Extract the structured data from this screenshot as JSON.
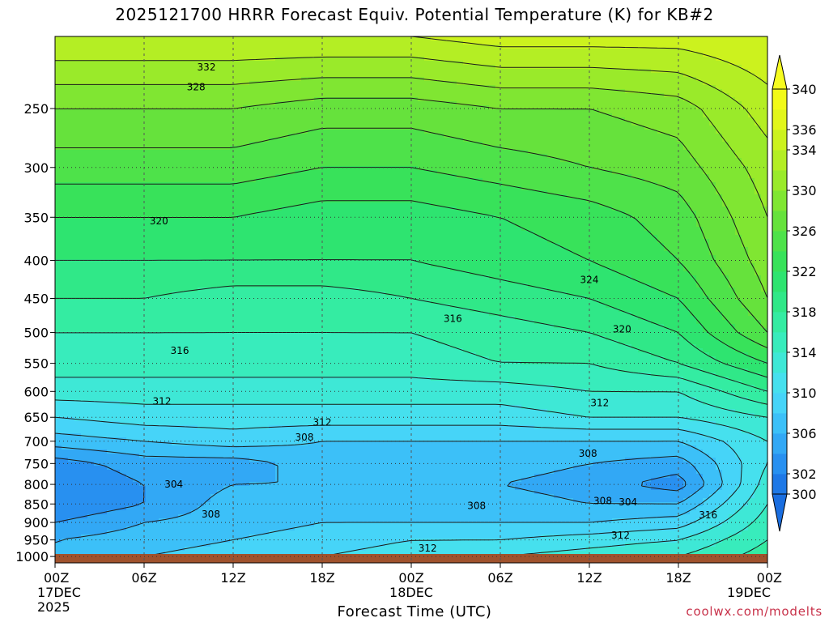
{
  "title": "2025121700 HRRR Forecast Equiv. Potential Temperature (K) for KB#2",
  "watermark": "coolwx.com/modelts",
  "chart_data": {
    "type": "heatmap",
    "title": "2025121700 HRRR Forecast Equiv. Potential Temperature (K) for KB#2",
    "xlabel": "Forecast Time (UTC)",
    "ylabel": "",
    "x_ticks": [
      {
        "hour": 0,
        "label": "00Z",
        "sub": [
          "17DEC",
          "2025"
        ]
      },
      {
        "hour": 6,
        "label": "06Z",
        "sub": []
      },
      {
        "hour": 12,
        "label": "12Z",
        "sub": []
      },
      {
        "hour": 18,
        "label": "18Z",
        "sub": []
      },
      {
        "hour": 24,
        "label": "00Z",
        "sub": [
          "18DEC"
        ]
      },
      {
        "hour": 30,
        "label": "06Z",
        "sub": []
      },
      {
        "hour": 36,
        "label": "12Z",
        "sub": []
      },
      {
        "hour": 42,
        "label": "18Z",
        "sub": []
      },
      {
        "hour": 48,
        "label": "00Z",
        "sub": [
          "19DEC"
        ]
      }
    ],
    "xlim": [
      0,
      48
    ],
    "y_ticks": [
      250,
      300,
      350,
      400,
      450,
      500,
      550,
      600,
      650,
      700,
      750,
      800,
      850,
      900,
      950,
      1000
    ],
    "ylim": [
      200,
      1020
    ],
    "y_scale": "log-pressure",
    "grid": true,
    "colorbar": {
      "levels": [
        300,
        302,
        304,
        306,
        308,
        310,
        312,
        314,
        316,
        318,
        320,
        322,
        324,
        326,
        328,
        330,
        332,
        334,
        336,
        338,
        340
      ],
      "labels": [
        300,
        302,
        306,
        310,
        314,
        318,
        322,
        326,
        330,
        334,
        336,
        340
      ],
      "colors": [
        "#1e78e6",
        "#2890f0",
        "#32a8f5",
        "#3cc0f8",
        "#46d4f8",
        "#46e0ee",
        "#3ee8d6",
        "#38ecbc",
        "#34eca2",
        "#30e888",
        "#2ee470",
        "#38e25a",
        "#4ee24a",
        "#66e23c",
        "#80e632",
        "#9aea2a",
        "#b4ee24",
        "#ccf21e",
        "#e2f61a",
        "#f2fa18"
      ],
      "extend": "both"
    },
    "field": {
      "x": [
        0,
        6,
        12,
        18,
        24,
        30,
        36,
        42,
        48
      ],
      "pressure": [
        1000,
        950,
        900,
        850,
        800,
        750,
        700,
        650,
        600,
        550,
        500,
        450,
        400,
        350,
        300,
        250,
        200
      ],
      "values": [
        [
          306,
          308,
          309,
          310,
          311,
          312,
          313,
          314,
          317
        ],
        [
          306,
          307,
          308,
          309,
          310,
          310,
          311,
          312,
          316
        ],
        [
          304,
          306,
          307,
          308,
          308,
          308,
          308,
          309,
          315
        ],
        [
          302,
          304,
          307,
          307,
          307,
          307,
          306,
          306,
          314
        ],
        [
          302,
          304,
          306,
          306,
          306,
          306,
          305,
          303,
          313
        ],
        [
          303,
          305,
          305,
          307,
          307,
          307,
          306,
          305,
          312
        ],
        [
          307,
          308,
          309,
          308,
          308,
          308,
          308,
          308,
          312
        ],
        [
          310,
          311,
          311,
          311,
          311,
          311,
          312,
          312,
          314
        ],
        [
          313,
          313,
          313,
          313,
          313,
          313,
          314,
          314,
          318
        ],
        [
          315,
          315,
          315,
          315,
          315,
          316,
          316,
          318,
          322
        ],
        [
          316,
          316,
          316,
          316,
          316,
          317,
          318,
          320,
          326
        ],
        [
          318,
          318,
          317,
          317,
          318,
          319,
          320,
          322,
          328
        ],
        [
          320,
          320,
          320,
          320,
          320,
          321,
          322,
          324,
          329
        ],
        [
          322,
          322,
          322,
          321,
          321,
          322,
          323,
          325,
          330
        ],
        [
          325,
          325,
          325,
          324,
          324,
          325,
          326,
          327,
          331
        ],
        [
          328,
          328,
          328,
          327,
          327,
          328,
          328,
          329,
          333
        ],
        [
          334,
          334,
          334,
          334,
          334,
          335,
          335,
          335,
          336
        ]
      ]
    },
    "contour_labels": [
      {
        "value": "332",
        "hour": 10.2,
        "p": 220
      },
      {
        "value": "328",
        "hour": 9.5,
        "p": 234
      },
      {
        "value": "320",
        "hour": 7.0,
        "p": 354
      },
      {
        "value": "324",
        "hour": 36.0,
        "p": 425
      },
      {
        "value": "316",
        "hour": 26.8,
        "p": 479
      },
      {
        "value": "320",
        "hour": 38.2,
        "p": 495
      },
      {
        "value": "316",
        "hour": 8.4,
        "p": 529
      },
      {
        "value": "312",
        "hour": 7.2,
        "p": 619
      },
      {
        "value": "312",
        "hour": 36.7,
        "p": 622
      },
      {
        "value": "312",
        "hour": 18.0,
        "p": 660
      },
      {
        "value": "308",
        "hour": 16.8,
        "p": 692
      },
      {
        "value": "308",
        "hour": 35.9,
        "p": 727
      },
      {
        "value": "304",
        "hour": 8.0,
        "p": 800
      },
      {
        "value": "308",
        "hour": 36.9,
        "p": 842
      },
      {
        "value": "304",
        "hour": 38.6,
        "p": 845
      },
      {
        "value": "308",
        "hour": 28.4,
        "p": 855
      },
      {
        "value": "308",
        "hour": 10.5,
        "p": 878
      },
      {
        "value": "316",
        "hour": 44.0,
        "p": 880
      },
      {
        "value": "312",
        "hour": 38.1,
        "p": 937
      },
      {
        "value": "312",
        "hour": 25.1,
        "p": 975
      }
    ]
  }
}
